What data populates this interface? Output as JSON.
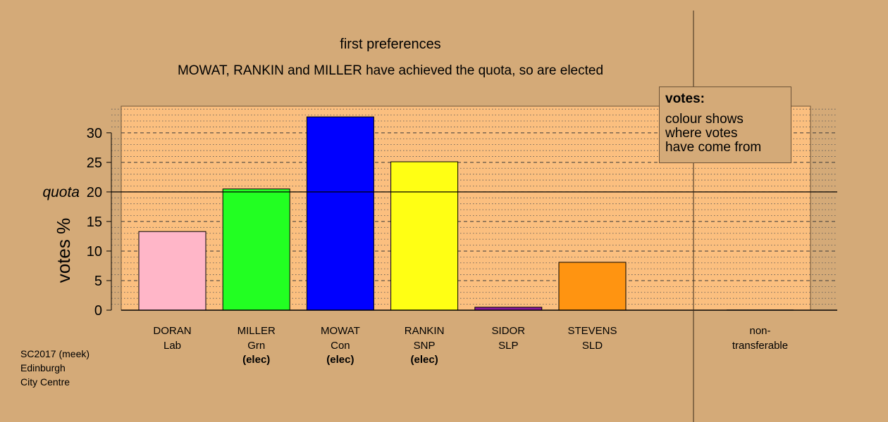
{
  "title": "first preferences",
  "subtitle": "MOWAT, RANKIN and MILLER have achieved the quota, so are elected",
  "source": {
    "lines": [
      "SC2017 (meek)",
      "Edinburgh",
      "City Centre"
    ]
  },
  "legend": {
    "heading": "votes:",
    "lines": [
      "colour shows",
      "where votes",
      "have come from"
    ]
  },
  "quota_label": "quota",
  "colors": {
    "background": "#d4aa78",
    "plot_background": "#fbbf7f",
    "axis": "#000000"
  },
  "chart_data": {
    "type": "bar",
    "ylabel": "votes %",
    "xlabel": "",
    "ylim": [
      0,
      34.5
    ],
    "yticks": [
      0,
      5,
      10,
      15,
      20,
      25,
      30
    ],
    "quota": 20,
    "grid": "dotted minor lines every 1, dashed lines every 5",
    "categories": [
      {
        "name": "DORAN",
        "party": "Lab",
        "status": "",
        "value": 13.3,
        "color": "#ffb6c8"
      },
      {
        "name": "MILLER",
        "party": "Grn",
        "status": "(elec)",
        "value": 20.5,
        "color": "#22ff22"
      },
      {
        "name": "MOWAT",
        "party": "Con",
        "status": "(elec)",
        "value": 32.7,
        "color": "#0000ff"
      },
      {
        "name": "RANKIN",
        "party": "SNP",
        "status": "(elec)",
        "value": 25.1,
        "color": "#ffff14"
      },
      {
        "name": "SIDOR",
        "party": "SLP",
        "status": "",
        "value": 0.5,
        "color": "#8a1a9e"
      },
      {
        "name": "STEVENS",
        "party": "SLD",
        "status": "",
        "value": 8.1,
        "color": "#ff9411"
      }
    ],
    "nontransferable": {
      "label_lines": [
        "non-",
        "transferable"
      ],
      "value": 0
    }
  }
}
